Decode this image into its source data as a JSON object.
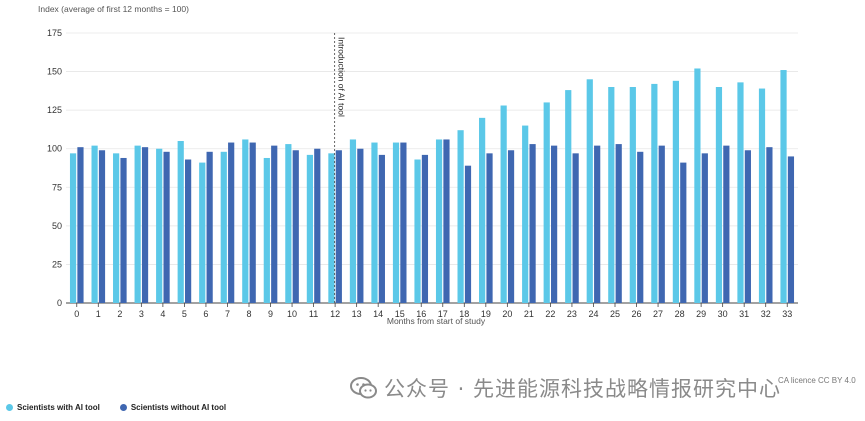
{
  "colors": {
    "with_ai": "#5bc8e8",
    "without_ai": "#3f67b1",
    "grid": "#e6e6e6",
    "axis": "#444444"
  },
  "chart_data": {
    "type": "bar",
    "ylabel": "Index (average of first 12 months = 100)",
    "xlabel": "Months from start of study",
    "ylim": [
      0,
      175
    ],
    "yticks": [
      0,
      25,
      50,
      75,
      100,
      125,
      150,
      175
    ],
    "grid": true,
    "legend_position": "bottom-left",
    "categories": [
      "0",
      "1",
      "2",
      "3",
      "4",
      "5",
      "6",
      "7",
      "8",
      "9",
      "10",
      "11",
      "12",
      "13",
      "14",
      "15",
      "16",
      "17",
      "18",
      "19",
      "20",
      "21",
      "22",
      "23",
      "24",
      "25",
      "26",
      "27",
      "28",
      "29",
      "30",
      "31",
      "32",
      "33"
    ],
    "series": [
      {
        "name": "Scientists with AI tool",
        "values": [
          97,
          102,
          97,
          102,
          100,
          105,
          91,
          98,
          106,
          94,
          103,
          96,
          97,
          106,
          104,
          104,
          93,
          106,
          112,
          120,
          128,
          115,
          130,
          138,
          145,
          140,
          140,
          142,
          144,
          152,
          140,
          143,
          139,
          151
        ]
      },
      {
        "name": "Scientists without AI tool",
        "values": [
          101,
          99,
          94,
          101,
          98,
          93,
          98,
          104,
          104,
          102,
          99,
          100,
          99,
          100,
          96,
          104,
          96,
          106,
          89,
          97,
          99,
          103,
          102,
          97,
          102,
          103,
          98,
          102,
          91,
          97,
          102,
          99,
          101,
          95
        ]
      }
    ],
    "annotations": [
      {
        "text": "Introduction of AI tool",
        "at_category": "12",
        "style": "dashed-vertical-line"
      }
    ]
  },
  "watermark": {
    "text": "公众号 · 先进能源科技战略情报研究中心"
  },
  "credit": "CA licence CC BY 4.0"
}
